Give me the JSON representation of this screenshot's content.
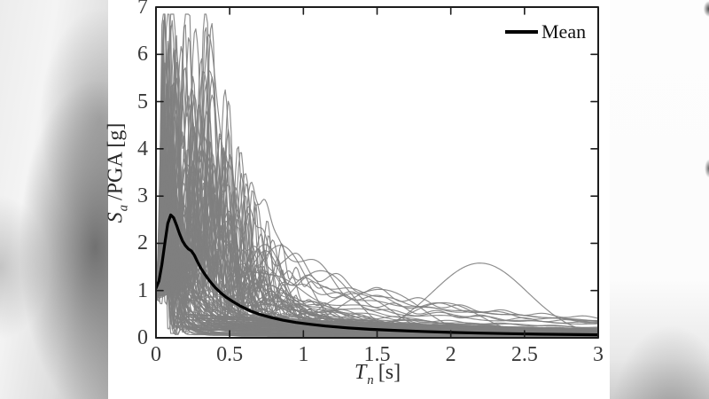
{
  "figure": {
    "kind": "matlab-response-spectra-figure",
    "background": "#ffffff"
  },
  "chart_data": {
    "type": "line",
    "title": "",
    "xlabel_parts": {
      "variable": "T",
      "subscript": "n",
      "unit": "[s]"
    },
    "ylabel_parts": {
      "variable": "S",
      "subscript": "a",
      "unit": "/PGA [g]"
    },
    "xlim": [
      0,
      3
    ],
    "ylim": [
      0,
      7
    ],
    "xtick_values": [
      0,
      0.5,
      1,
      1.5,
      2,
      2.5,
      3
    ],
    "xtick_labels": [
      "0",
      "0.5",
      "1",
      "1.5",
      "2",
      "2.5",
      "3"
    ],
    "ytick_values": [
      0,
      1,
      2,
      3,
      4,
      5,
      6,
      7
    ],
    "ytick_labels": [
      "0",
      "1",
      "2",
      "3",
      "4",
      "5",
      "6",
      "7"
    ],
    "grid": false,
    "axes": {
      "box": true,
      "tick_dir": "in",
      "tick_length": 8,
      "color": "#1c1c1c",
      "tick_label_color": "#3a3a3a",
      "frame_width": 2
    },
    "legend": {
      "location": "northeast",
      "boxed": false,
      "entries": [
        {
          "label": "Mean",
          "color": "#000000",
          "line_width": 4
        }
      ]
    },
    "series": [
      {
        "name": "Mean",
        "role": "mean",
        "color": "#000000",
        "width": 3.2,
        "points": [
          [
            0,
            1.05
          ],
          [
            0.02,
            1.2
          ],
          [
            0.04,
            1.55
          ],
          [
            0.06,
            2.0
          ],
          [
            0.08,
            2.42
          ],
          [
            0.1,
            2.6
          ],
          [
            0.12,
            2.54
          ],
          [
            0.14,
            2.38
          ],
          [
            0.16,
            2.2
          ],
          [
            0.18,
            2.05
          ],
          [
            0.2,
            1.95
          ],
          [
            0.22,
            1.88
          ],
          [
            0.24,
            1.84
          ],
          [
            0.26,
            1.75
          ],
          [
            0.28,
            1.62
          ],
          [
            0.3,
            1.5
          ],
          [
            0.33,
            1.35
          ],
          [
            0.36,
            1.22
          ],
          [
            0.4,
            1.07
          ],
          [
            0.44,
            0.95
          ],
          [
            0.48,
            0.85
          ],
          [
            0.52,
            0.77
          ],
          [
            0.58,
            0.66
          ],
          [
            0.64,
            0.57
          ],
          [
            0.7,
            0.5
          ],
          [
            0.78,
            0.43
          ],
          [
            0.86,
            0.375
          ],
          [
            0.95,
            0.325
          ],
          [
            1.05,
            0.285
          ],
          [
            1.15,
            0.25
          ],
          [
            1.3,
            0.21
          ],
          [
            1.45,
            0.18
          ],
          [
            1.6,
            0.16
          ],
          [
            1.8,
            0.135
          ],
          [
            2.0,
            0.115
          ],
          [
            2.2,
            0.1
          ],
          [
            2.4,
            0.088
          ],
          [
            2.6,
            0.078
          ],
          [
            2.8,
            0.07
          ],
          [
            3.0,
            0.063
          ]
        ]
      }
    ],
    "ensemble": {
      "role": "individual-record-spectra",
      "count": 128,
      "color": "#808080",
      "opacity": 0.9,
      "width": 1.15,
      "seed": 7,
      "start_range": [
        0.85,
        1.18
      ],
      "peak_period_range": [
        0.05,
        0.55
      ],
      "peak_amp_max": 6.7,
      "floor_range": [
        0.04,
        0.54
      ],
      "outlier_humps": [
        [
          2.2,
          1.55,
          0.32
        ],
        [
          1.95,
          0.7,
          0.25
        ],
        [
          1.52,
          1.0,
          0.28
        ],
        [
          1.12,
          1.35,
          0.22
        ],
        [
          0.85,
          1.8,
          0.18
        ],
        [
          0.74,
          1.9,
          0.14
        ],
        [
          1.35,
          0.9,
          0.25
        ]
      ]
    }
  }
}
